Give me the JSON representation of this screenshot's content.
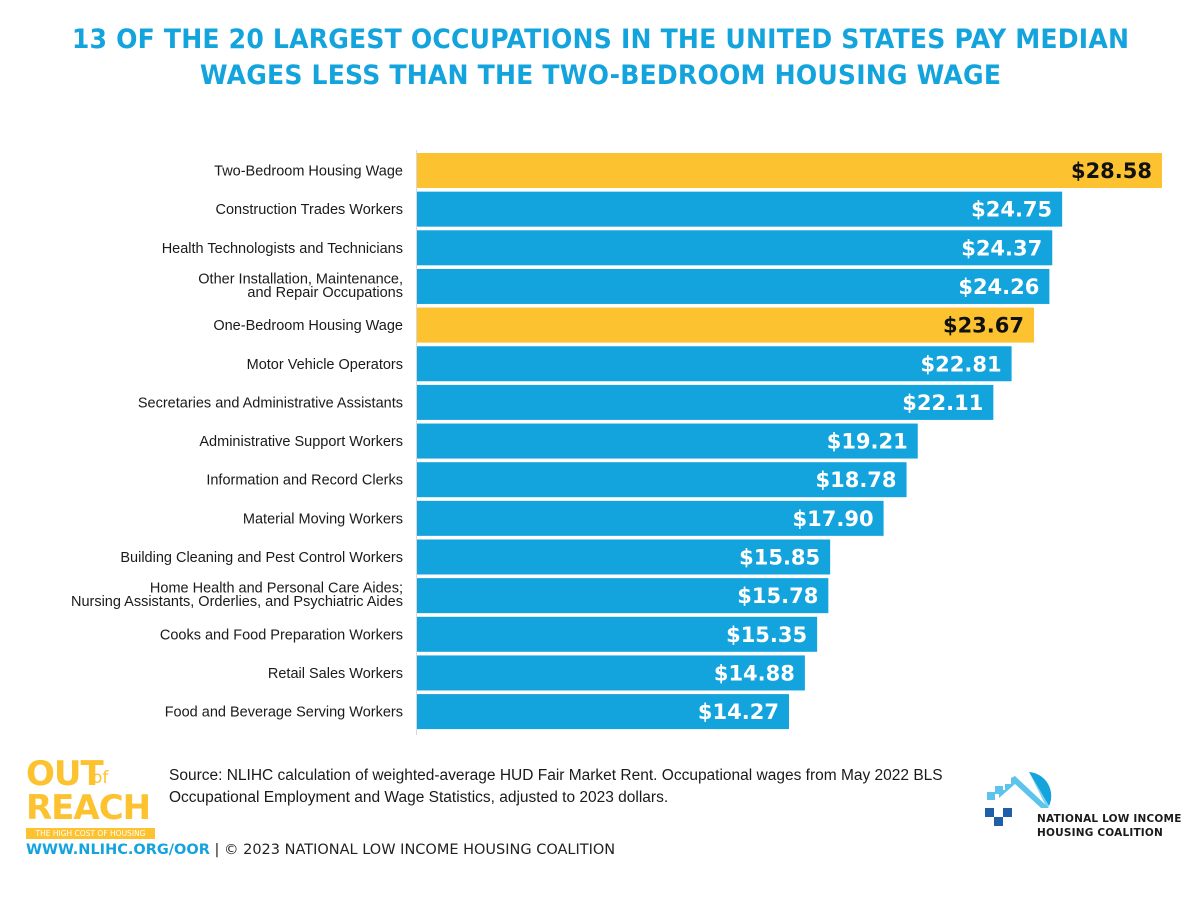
{
  "title": {
    "line1": "13 OF THE 20 LARGEST OCCUPATIONS IN THE UNITED STATES PAY MEDIAN",
    "line2": "WAGES LESS THAN THE TWO-BEDROOM HOUSING WAGE"
  },
  "colors": {
    "title": "#13A3DD",
    "occupation_bar": "#13A3DD",
    "housing_wage_bar": "#FDC22F",
    "occupation_value_text": "#FFFFFF",
    "housing_wage_value_text": "#111111"
  },
  "chart_data": {
    "type": "bar",
    "orientation": "horizontal",
    "title": "13 OF THE 20 LARGEST OCCUPATIONS IN THE UNITED STATES PAY MEDIAN WAGES LESS THAN THE TWO-BEDROOM HOUSING WAGE",
    "xlabel": "",
    "ylabel": "",
    "xlim": [
      0,
      28.58
    ],
    "grid": false,
    "legend": "none",
    "value_prefix": "$",
    "categories": [
      [
        "Two-Bedroom Housing Wage"
      ],
      [
        "Construction Trades Workers"
      ],
      [
        "Health Technologists and Technicians"
      ],
      [
        "Other Installation, Maintenance,",
        "and Repair Occupations"
      ],
      [
        "One-Bedroom Housing Wage"
      ],
      [
        "Motor Vehicle Operators"
      ],
      [
        "Secretaries and Administrative Assistants"
      ],
      [
        "Administrative Support Workers"
      ],
      [
        "Information and Record Clerks"
      ],
      [
        "Material Moving Workers"
      ],
      [
        "Building Cleaning and Pest Control Workers"
      ],
      [
        "Home Health and Personal Care Aides;",
        "Nursing Assistants, Orderlies, and Psychiatric Aides"
      ],
      [
        "Cooks and Food Preparation Workers"
      ],
      [
        "Retail Sales Workers"
      ],
      [
        "Food and Beverage Serving Workers"
      ]
    ],
    "values": [
      28.58,
      24.75,
      24.37,
      24.26,
      23.67,
      22.81,
      22.11,
      19.21,
      18.78,
      17.9,
      15.85,
      15.78,
      15.35,
      14.88,
      14.27
    ],
    "value_labels": [
      "$28.58",
      "$24.75",
      "$24.37",
      "$24.26",
      "$23.67",
      "$22.81",
      "$22.11",
      "$19.21",
      "$18.78",
      "$17.90",
      "$15.85",
      "$15.78",
      "$15.35",
      "$14.88",
      "$14.27"
    ],
    "highlight": [
      true,
      false,
      false,
      false,
      true,
      false,
      false,
      false,
      false,
      false,
      false,
      false,
      false,
      false,
      false
    ]
  },
  "source": {
    "line1": "Source: NLIHC calculation of weighted-average HUD Fair Market Rent. Occupational wages from May 2022 BLS",
    "line2": "Occupational Employment and Wage Statistics, adjusted to 2023 dollars."
  },
  "oor_logo": {
    "out": "OUT",
    "of": "of",
    "reach": "REACH",
    "tagline": "THE HIGH COST OF HOUSING"
  },
  "footer": {
    "url": "WWW.NLIHC.ORG/OOR",
    "separator": " | ",
    "copyright": "© 2023 NATIONAL LOW INCOME HOUSING COALITION"
  },
  "nlihc_logo": {
    "line1": "NATIONAL LOW INCOME",
    "line2": "HOUSING COALITION"
  }
}
